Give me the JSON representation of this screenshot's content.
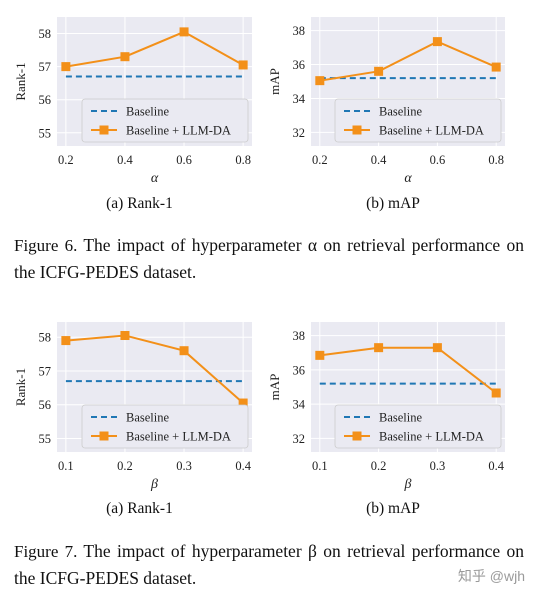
{
  "colors": {
    "baseline": "#1f77b4",
    "llm_da": "#f39019",
    "axes_bg": "#eaeaf2",
    "grid": "#ffffff"
  },
  "figures": [
    {
      "caption_label": "Figure 6.",
      "caption_text": "The impact of hyperparameter α on retrieval performance on the ICFG-PEDES dataset."
    },
    {
      "caption_label": "Figure 7.",
      "caption_text": "The impact of hyperparameter β on retrieval performance on the ICFG-PEDES dataset."
    }
  ],
  "chart_data": [
    {
      "type": "line",
      "subcaption": "(a) Rank-1",
      "xlabel": "α",
      "ylabel": "Rank-1",
      "x": [
        0.2,
        0.4,
        0.6,
        0.8
      ],
      "xticks": [
        "0.2",
        "0.4",
        "0.6",
        "0.8"
      ],
      "xlim": [
        0.17,
        0.83
      ],
      "yticks": [
        55,
        56,
        57,
        58
      ],
      "ylim": [
        54.6,
        58.5
      ],
      "legend": "lower-right",
      "grid": true,
      "series": [
        {
          "name": "Baseline",
          "values": [
            56.7,
            56.7,
            56.7,
            56.7
          ],
          "style": "dashed"
        },
        {
          "name": "Baseline + LLM-DA",
          "values": [
            57.0,
            57.3,
            58.05,
            57.05
          ],
          "style": "solid-square"
        }
      ]
    },
    {
      "type": "line",
      "subcaption": "(b) mAP",
      "xlabel": "α",
      "ylabel": "mAP",
      "x": [
        0.2,
        0.4,
        0.6,
        0.8
      ],
      "xticks": [
        "0.2",
        "0.4",
        "0.6",
        "0.8"
      ],
      "xlim": [
        0.17,
        0.83
      ],
      "yticks": [
        32,
        34,
        36,
        38
      ],
      "ylim": [
        31.2,
        38.8
      ],
      "legend": "lower-right",
      "grid": true,
      "series": [
        {
          "name": "Baseline",
          "values": [
            35.2,
            35.2,
            35.2,
            35.2
          ],
          "style": "dashed"
        },
        {
          "name": "Baseline + LLM-DA",
          "values": [
            35.05,
            35.6,
            37.35,
            35.85
          ],
          "style": "solid-square"
        }
      ]
    },
    {
      "type": "line",
      "subcaption": "(a) Rank-1",
      "xlabel": "β",
      "ylabel": "Rank-1",
      "x": [
        0.1,
        0.2,
        0.3,
        0.4
      ],
      "xticks": [
        "0.1",
        "0.2",
        "0.3",
        "0.4"
      ],
      "xlim": [
        0.085,
        0.415
      ],
      "yticks": [
        55,
        56,
        57,
        58
      ],
      "ylim": [
        54.6,
        58.45
      ],
      "legend": "lower-right",
      "grid": true,
      "series": [
        {
          "name": "Baseline",
          "values": [
            56.7,
            56.7,
            56.7,
            56.7
          ],
          "style": "dashed"
        },
        {
          "name": "Baseline + LLM-DA",
          "values": [
            57.9,
            58.05,
            57.6,
            56.05
          ],
          "style": "solid-square"
        }
      ]
    },
    {
      "type": "line",
      "subcaption": "(b) mAP",
      "xlabel": "β",
      "ylabel": "mAP",
      "x": [
        0.1,
        0.2,
        0.3,
        0.4
      ],
      "xticks": [
        "0.1",
        "0.2",
        "0.3",
        "0.4"
      ],
      "xlim": [
        0.085,
        0.415
      ],
      "yticks": [
        32,
        34,
        36,
        38
      ],
      "ylim": [
        31.2,
        38.8
      ],
      "legend": "lower-right",
      "grid": true,
      "series": [
        {
          "name": "Baseline",
          "values": [
            35.2,
            35.2,
            35.2,
            35.2
          ],
          "style": "dashed"
        },
        {
          "name": "Baseline + LLM-DA",
          "values": [
            36.85,
            37.3,
            37.3,
            34.65
          ],
          "style": "solid-square"
        }
      ]
    }
  ],
  "watermark": "知乎 @wjh"
}
